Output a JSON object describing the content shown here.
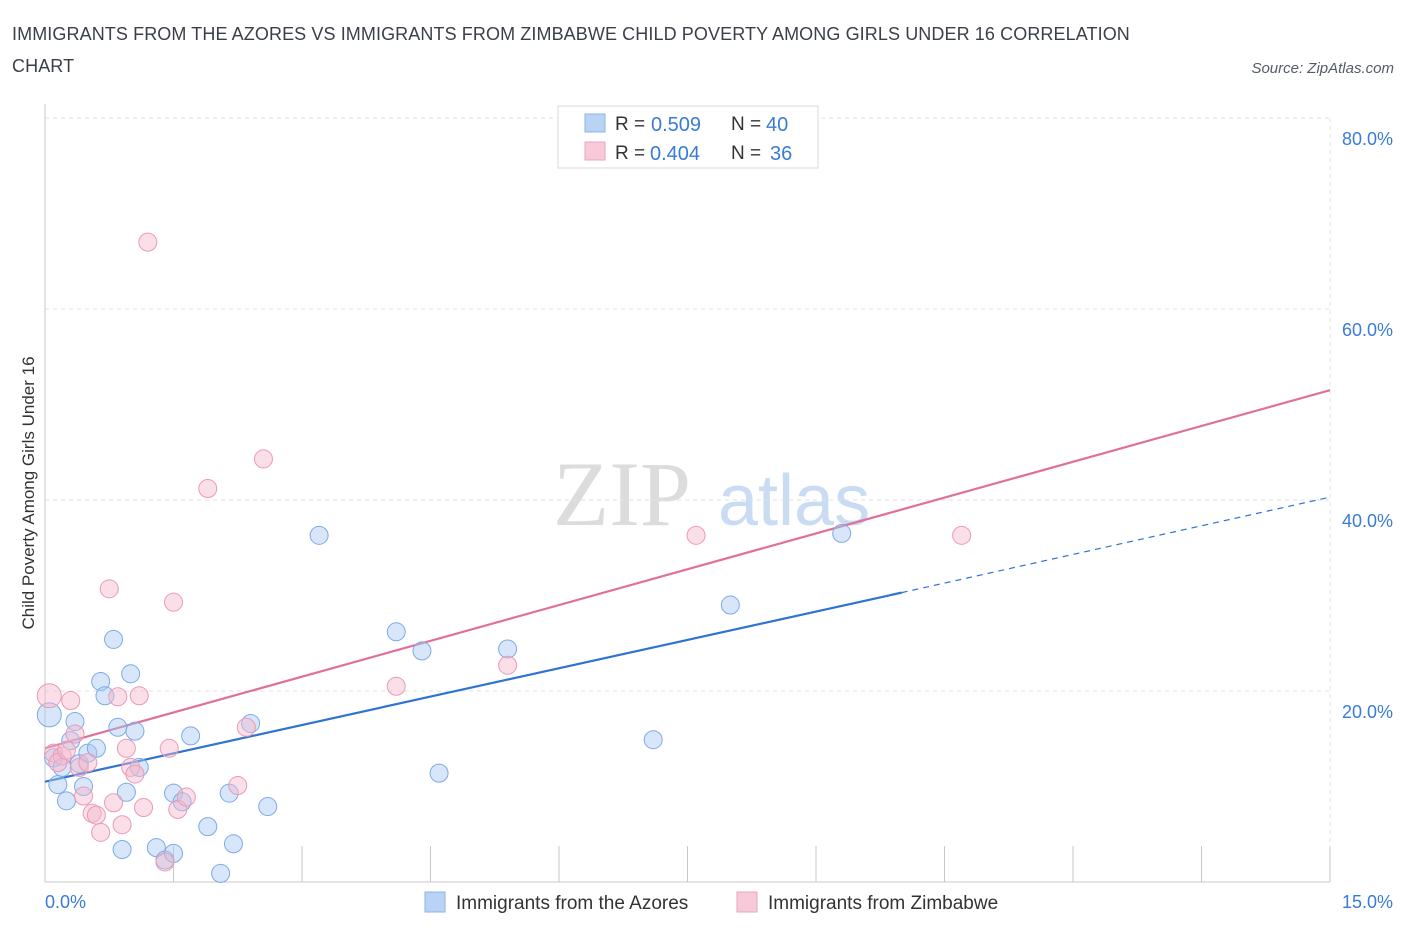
{
  "title": "IMMIGRANTS FROM THE AZORES VS IMMIGRANTS FROM ZIMBABWE CHILD POVERTY AMONG GIRLS UNDER 16 CORRELATION CHART",
  "source": "Source: ZipAtlas.com",
  "watermark": {
    "zip": "ZIP",
    "atlas": "atlas"
  },
  "colors": {
    "azores": "#a9c8f2",
    "azores_line": "#2f74d0",
    "zimbabwe": "#f5b8cc",
    "zimbabwe_line": "#e0709a",
    "accent": "#3a7bd5"
  },
  "legend": {
    "azores": {
      "r_label": "R =",
      "r_value": "0.509",
      "n_label": "N =",
      "n_value": "40"
    },
    "zimbabwe": {
      "r_label": "R =",
      "r_value": "0.404",
      "n_label": "N =",
      "n_value": "36"
    }
  },
  "chart_data": {
    "type": "scatter",
    "title": "IMMIGRANTS FROM THE AZORES VS IMMIGRANTS FROM ZIMBABWE CHILD POVERTY AMONG GIRLS UNDER 16 CORRELATION CHART",
    "xlabel": "",
    "ylabel": "Child Poverty Among Girls Under 16",
    "xlim": [
      0,
      15
    ],
    "ylim": [
      0,
      80
    ],
    "x_tick_labels": [
      "0.0%",
      "15.0%"
    ],
    "y_tick_labels": [
      "20.0%",
      "40.0%",
      "60.0%",
      "80.0%"
    ],
    "y_ticks": [
      20,
      40,
      60,
      80
    ],
    "grid": true,
    "series": [
      {
        "name": "Immigrants from the Azores",
        "trend": {
          "x0": 0,
          "y0": 10.5,
          "x1": 10.0,
          "y1": 30.3,
          "dash_to_x": 15,
          "dash_to_y": 40.3
        },
        "points": [
          [
            0.05,
            17.5
          ],
          [
            0.1,
            13.0
          ],
          [
            0.15,
            10.2
          ],
          [
            0.2,
            12.0
          ],
          [
            0.25,
            8.5
          ],
          [
            0.3,
            14.8
          ],
          [
            0.35,
            16.8
          ],
          [
            0.4,
            12.4
          ],
          [
            0.45,
            10.0
          ],
          [
            0.5,
            13.5
          ],
          [
            0.6,
            14.0
          ],
          [
            0.65,
            21.0
          ],
          [
            0.7,
            19.5
          ],
          [
            0.8,
            25.4
          ],
          [
            0.85,
            16.2
          ],
          [
            0.9,
            3.4
          ],
          [
            0.95,
            9.4
          ],
          [
            1.0,
            21.8
          ],
          [
            1.05,
            15.8
          ],
          [
            1.1,
            12.0
          ],
          [
            1.3,
            3.6
          ],
          [
            1.4,
            2.3
          ],
          [
            1.5,
            3.0
          ],
          [
            1.5,
            9.3
          ],
          [
            1.6,
            8.4
          ],
          [
            1.7,
            15.3
          ],
          [
            1.9,
            5.8
          ],
          [
            2.05,
            0.9
          ],
          [
            2.15,
            9.3
          ],
          [
            2.2,
            4.0
          ],
          [
            2.4,
            16.6
          ],
          [
            2.6,
            7.9
          ],
          [
            3.2,
            36.3
          ],
          [
            4.1,
            26.2
          ],
          [
            4.4,
            24.2
          ],
          [
            4.6,
            11.4
          ],
          [
            5.4,
            24.4
          ],
          [
            7.1,
            14.9
          ],
          [
            8.0,
            29.0
          ],
          [
            9.3,
            36.5
          ]
        ]
      },
      {
        "name": "Immigrants from Zimbabwe",
        "trend": {
          "x0": 0,
          "y0": 14.0,
          "x1": 15.0,
          "y1": 51.5
        },
        "points": [
          [
            0.05,
            19.5
          ],
          [
            0.1,
            13.5
          ],
          [
            0.2,
            13.2
          ],
          [
            0.3,
            19.0
          ],
          [
            0.35,
            15.5
          ],
          [
            0.4,
            12.0
          ],
          [
            0.45,
            9.0
          ],
          [
            0.5,
            12.5
          ],
          [
            0.55,
            7.2
          ],
          [
            0.6,
            7.0
          ],
          [
            0.65,
            5.2
          ],
          [
            0.75,
            30.7
          ],
          [
            0.8,
            8.3
          ],
          [
            0.85,
            19.4
          ],
          [
            0.9,
            6.0
          ],
          [
            0.95,
            14.0
          ],
          [
            1.0,
            12.0
          ],
          [
            1.05,
            11.3
          ],
          [
            1.1,
            19.5
          ],
          [
            1.15,
            7.8
          ],
          [
            1.2,
            67.0
          ],
          [
            1.4,
            2.1
          ],
          [
            1.45,
            14.0
          ],
          [
            1.5,
            29.3
          ],
          [
            1.55,
            7.6
          ],
          [
            1.65,
            8.9
          ],
          [
            1.9,
            41.2
          ],
          [
            2.25,
            10.1
          ],
          [
            2.35,
            16.2
          ],
          [
            2.55,
            44.3
          ],
          [
            4.1,
            20.5
          ],
          [
            5.4,
            22.7
          ],
          [
            7.6,
            36.3
          ],
          [
            10.7,
            36.3
          ],
          [
            0.15,
            12.5
          ],
          [
            0.25,
            13.8
          ]
        ]
      }
    ]
  },
  "bottom_legend": {
    "azores_label": "Immigrants from the Azores",
    "zimbabwe_label": "Immigrants from Zimbabwe"
  }
}
